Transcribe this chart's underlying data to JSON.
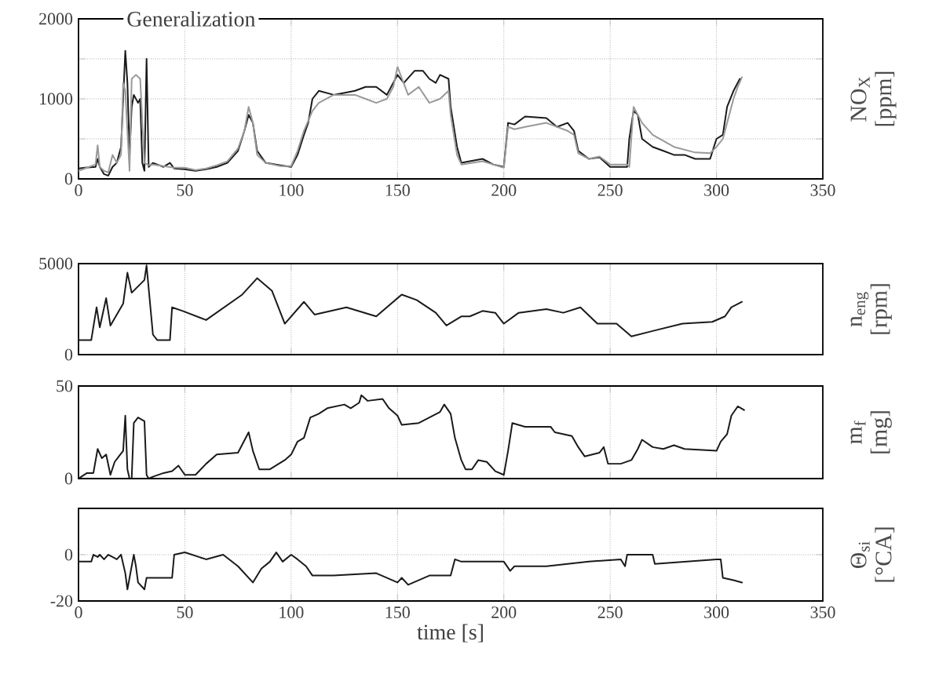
{
  "chart_data": [
    {
      "type": "line",
      "title": "Generalization",
      "ylabel": "NO$_{X}$ [ppm]",
      "xlim": [
        0,
        350
      ],
      "ylim": [
        0,
        2000
      ],
      "xticks": [
        0,
        50,
        100,
        150,
        200,
        250,
        300,
        350
      ],
      "yticks": [
        0,
        {
          "value": 500,
          "label": null
        },
        1000,
        {
          "value": 1500,
          "label": null
        },
        2000
      ],
      "grid": true,
      "series": [
        {
          "color": "#1a1a1a",
          "x": [
            0,
            3,
            8,
            9,
            10,
            12,
            14,
            16,
            18,
            20,
            22,
            23,
            24,
            25,
            26,
            28,
            29,
            30,
            31,
            32,
            33,
            35,
            40,
            43,
            45,
            50,
            55,
            60,
            65,
            70,
            75,
            78,
            80,
            82,
            84,
            88,
            95,
            100,
            103,
            106,
            108,
            110,
            113,
            120,
            130,
            135,
            140,
            145,
            148,
            150,
            153,
            158,
            162,
            165,
            168,
            170,
            174,
            175,
            178,
            180,
            190,
            195,
            200,
            202,
            205,
            210,
            220,
            225,
            230,
            233,
            235,
            240,
            245,
            250,
            258,
            259,
            261,
            263,
            265,
            270,
            275,
            280,
            285,
            290,
            297,
            300,
            303,
            305,
            308,
            311
          ],
          "values": [
            130,
            140,
            150,
            250,
            150,
            60,
            40,
            150,
            200,
            400,
            1600,
            1200,
            300,
            900,
            1050,
            950,
            1000,
            200,
            100,
            1500,
            150,
            200,
            150,
            200,
            130,
            120,
            100,
            120,
            150,
            200,
            350,
            600,
            800,
            700,
            350,
            200,
            170,
            150,
            300,
            550,
            700,
            1000,
            1100,
            1050,
            1100,
            1150,
            1150,
            1050,
            1200,
            1300,
            1200,
            1350,
            1350,
            1250,
            1200,
            1300,
            1250,
            900,
            400,
            200,
            250,
            180,
            150,
            700,
            680,
            780,
            760,
            650,
            700,
            600,
            350,
            250,
            270,
            150,
            150,
            500,
            850,
            800,
            500,
            400,
            350,
            300,
            300,
            250,
            250,
            500,
            550,
            900,
            1100,
            1250
          ]
        },
        {
          "color": "#999999",
          "x": [
            0,
            3,
            8,
            9,
            10,
            12,
            14,
            16,
            18,
            20,
            21,
            22,
            24,
            25,
            27,
            29,
            31,
            33,
            35,
            40,
            45,
            50,
            55,
            60,
            65,
            70,
            75,
            78,
            80,
            82,
            84,
            88,
            95,
            100,
            103,
            106,
            110,
            113,
            120,
            130,
            135,
            140,
            145,
            148,
            150,
            155,
            160,
            165,
            170,
            174,
            175,
            178,
            180,
            190,
            195,
            200,
            202,
            205,
            210,
            220,
            230,
            233,
            235,
            240,
            245,
            250,
            258,
            259,
            261,
            265,
            270,
            280,
            290,
            297,
            300,
            303,
            305,
            308,
            310,
            312
          ],
          "values": [
            100,
            130,
            180,
            420,
            150,
            100,
            80,
            300,
            200,
            300,
            1200,
            1100,
            100,
            1250,
            1300,
            1250,
            200,
            170,
            180,
            160,
            140,
            140,
            110,
            130,
            170,
            220,
            380,
            600,
            900,
            700,
            300,
            200,
            160,
            160,
            350,
            600,
            850,
            950,
            1050,
            1050,
            1000,
            950,
            1000,
            1150,
            1400,
            1050,
            1150,
            950,
            1000,
            1100,
            800,
            300,
            180,
            220,
            180,
            140,
            650,
            620,
            650,
            700,
            600,
            550,
            320,
            250,
            280,
            180,
            180,
            150,
            900,
            700,
            550,
            400,
            330,
            320,
            400,
            500,
            700,
            1000,
            1150,
            1270
          ]
        }
      ]
    },
    {
      "type": "line",
      "ylabel": "n$_{eng}$ [rpm]",
      "xlim": [
        0,
        350
      ],
      "ylim": [
        0,
        5000
      ],
      "xticks": [
        0,
        50,
        100,
        150,
        200,
        250,
        300,
        350
      ],
      "yticks": [
        0,
        5000
      ],
      "grid": "x",
      "tick_labels": "y",
      "series": [
        {
          "color": "#1a1a1a",
          "x": [
            0,
            6,
            8.5,
            10,
            13,
            15,
            21,
            23,
            25,
            31,
            32,
            35,
            37,
            43,
            44,
            49,
            60,
            77,
            84,
            91,
            97,
            106,
            111,
            126,
            140,
            152,
            159,
            168,
            173,
            180,
            184,
            190,
            196,
            200,
            207,
            220,
            228,
            236,
            244,
            253,
            260,
            270,
            284,
            298,
            304,
            307,
            312
          ],
          "values": [
            800,
            800,
            2600,
            1500,
            3100,
            1600,
            2800,
            4500,
            3400,
            4100,
            4900,
            1100,
            800,
            800,
            2600,
            2400,
            1900,
            3300,
            4200,
            3500,
            1700,
            2900,
            2200,
            2600,
            2100,
            3300,
            3000,
            2300,
            1600,
            2100,
            2100,
            2400,
            2300,
            1700,
            2300,
            2500,
            2300,
            2600,
            1700,
            1700,
            1000,
            1300,
            1700,
            1800,
            2100,
            2600,
            2900
          ]
        }
      ]
    },
    {
      "type": "line",
      "ylabel": "m$_{f}$ [mg]",
      "xlim": [
        0,
        350
      ],
      "ylim": [
        0,
        50
      ],
      "xticks": [
        0,
        50,
        100,
        150,
        200,
        250,
        300,
        350
      ],
      "yticks": [
        0,
        50
      ],
      "grid": "x",
      "tick_labels": "y",
      "series": [
        {
          "color": "#1a1a1a",
          "x": [
            0,
            4,
            7,
            9,
            11,
            13,
            15,
            17,
            19,
            21,
            22,
            23,
            24,
            25,
            26,
            28,
            31,
            32,
            33,
            35,
            40,
            44,
            47,
            50,
            55,
            60,
            65,
            75,
            80,
            82,
            85,
            90,
            97,
            100,
            103,
            106,
            109,
            113,
            117,
            125,
            128,
            132,
            133,
            136,
            143,
            146,
            150,
            152,
            160,
            170,
            172,
            175,
            177,
            180,
            182,
            185,
            188,
            192,
            196,
            200,
            202,
            204,
            210,
            222,
            224,
            232,
            235,
            238,
            245,
            247,
            249,
            255,
            260,
            263,
            265,
            270,
            275,
            280,
            285,
            300,
            302,
            305,
            307,
            310,
            313
          ],
          "values": [
            0,
            3,
            3,
            16,
            11,
            13,
            2,
            9,
            12,
            15,
            34,
            5,
            0,
            0,
            30,
            33,
            31,
            2,
            0,
            1,
            3,
            4,
            7,
            2,
            2,
            8,
            13,
            14,
            25,
            15,
            5,
            5,
            10,
            13,
            20,
            22,
            33,
            35,
            38,
            40,
            38,
            41,
            45,
            42,
            43,
            38,
            34,
            29,
            30,
            36,
            40,
            35,
            22,
            10,
            5,
            5,
            10,
            9,
            4,
            2,
            15,
            30,
            28,
            28,
            25,
            23,
            17,
            12,
            14,
            17,
            8,
            8,
            10,
            16,
            21,
            17,
            16,
            18,
            16,
            15,
            20,
            24,
            34,
            39,
            37
          ]
        }
      ]
    },
    {
      "type": "line",
      "ylabel": "Θ$_{si}$ [°CA]",
      "xlabel": "time [s]",
      "xlim": [
        0,
        350
      ],
      "ylim": [
        -20,
        20
      ],
      "xticks": [
        0,
        50,
        100,
        150,
        200,
        250,
        300,
        350
      ],
      "yticks": [
        -20,
        0
      ],
      "grid": true,
      "series": [
        {
          "color": "#1a1a1a",
          "x": [
            0,
            6,
            7,
            9,
            10,
            12,
            14,
            16,
            18,
            20,
            22,
            23,
            24,
            25,
            26,
            27,
            28,
            31,
            32,
            44,
            45,
            50,
            60,
            68,
            75,
            82,
            86,
            90,
            93,
            96,
            100,
            103,
            107,
            110,
            120,
            140,
            150,
            152,
            155,
            165,
            175,
            177,
            180,
            195,
            200,
            203,
            205,
            220,
            240,
            255,
            257,
            258,
            270,
            271,
            300,
            302,
            303,
            308,
            312
          ],
          "values": [
            -3,
            -3,
            0,
            -1,
            0,
            -2,
            0,
            -1,
            -2,
            0,
            -8,
            -15,
            -10,
            -5,
            0,
            -5,
            -12,
            -15,
            -10,
            -10,
            0,
            1,
            -2,
            0,
            -5,
            -12,
            -6,
            -3,
            1,
            -3,
            0,
            -2,
            -5,
            -9,
            -9,
            -8,
            -12,
            -10,
            -13,
            -9,
            -9,
            -2,
            -3,
            -3,
            -3,
            -7,
            -5,
            -5,
            -3,
            -2,
            -5,
            0,
            0,
            -4,
            -2,
            -2,
            -10,
            -11,
            -12
          ]
        }
      ]
    }
  ]
}
